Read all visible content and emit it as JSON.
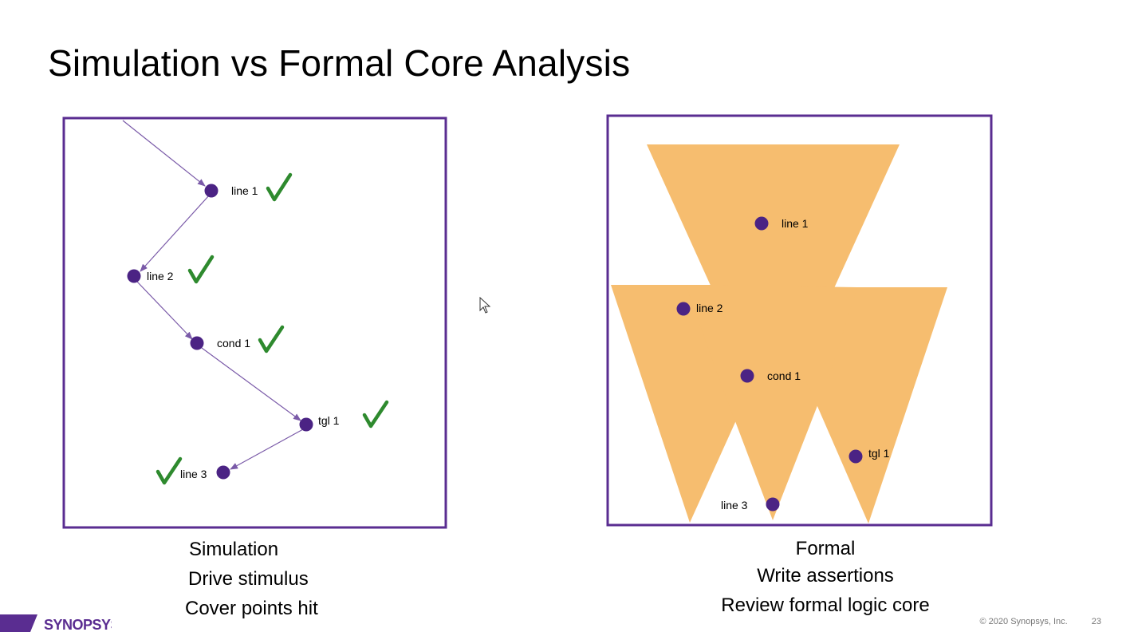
{
  "slide": {
    "title": "Simulation vs Formal Core Analysis",
    "page_number": "23",
    "copyright": "© 2020 Synopsys, Inc.",
    "brand": "SYNOPSYS"
  },
  "colors": {
    "frame": "#5a2d91",
    "node": "#4b2384",
    "arrow": "#7a5aa8",
    "check": "#2e8a2e",
    "cone": "#f6bd6f",
    "logo": "#5a2d91"
  },
  "simulation": {
    "nodes": [
      {
        "label": "line 1",
        "checked": true
      },
      {
        "label": "line 2",
        "checked": true
      },
      {
        "label": "cond 1",
        "checked": true
      },
      {
        "label": "tgl 1",
        "checked": true
      },
      {
        "label": "line 3",
        "checked": true
      }
    ],
    "caption": [
      "Simulation",
      "Drive stimulus",
      "Cover points hit"
    ]
  },
  "formal": {
    "nodes": [
      {
        "label": "line 1"
      },
      {
        "label": "line 2"
      },
      {
        "label": "cond 1"
      },
      {
        "label": "tgl 1"
      },
      {
        "label": "line 3"
      }
    ],
    "caption": [
      "Formal",
      "Write assertions",
      "Review formal logic core"
    ]
  }
}
